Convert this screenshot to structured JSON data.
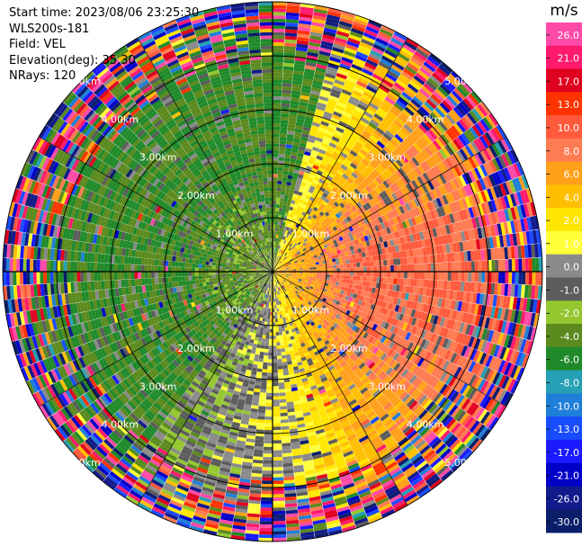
{
  "header": {
    "start_time": "Start time: 2023/08/06 23:25:30",
    "instrument": "WLS200s-181",
    "field": "Field: VEL",
    "elevation": "Elevation(deg): 35.30",
    "nrays": "NRays: 120"
  },
  "chart_data": {
    "type": "heatmap",
    "projection": "polar PPI",
    "field": "VEL",
    "units": "m/s",
    "n_rays": 120,
    "elevation_deg": 35.3,
    "range_rings_km": [
      1,
      2,
      3,
      4,
      5
    ],
    "range_ring_labels": [
      "1.00km",
      "2.00km",
      "3.00km",
      "4.00km",
      "5.00km"
    ],
    "max_range_km": 5.0,
    "colorbar": {
      "label": "m/s",
      "levels": [
        -30,
        -26,
        -21,
        -17,
        -13,
        -10,
        -8,
        -6,
        -4,
        -2,
        -1,
        0,
        1,
        2,
        4,
        6,
        8,
        10,
        13,
        17,
        21,
        26,
        30
      ],
      "tick_labels": [
        "26.0",
        "21.0",
        "17.0",
        "13.0",
        "10.0",
        "8.0",
        "6.0",
        "4.0",
        "2.0",
        "1.0",
        "0.0",
        "-1.0",
        "-2.0",
        "-4.0",
        "-6.0",
        "-8.0",
        "-10.0",
        "-13.0",
        "-17.0",
        "-21.0",
        "-26.0",
        "-30.0"
      ],
      "colors": [
        "#0b1e6a",
        "#121a8c",
        "#0000c8",
        "#1a1aff",
        "#1a4cff",
        "#1f7fd8",
        "#26a0b4",
        "#208a2a",
        "#5b8a1e",
        "#94c72f",
        "#5c5c5c",
        "#8a8a8a",
        "#ffff3a",
        "#ffe600",
        "#ffbf00",
        "#ff9f1a",
        "#ff7b52",
        "#ff5a3c",
        "#ff3300",
        "#e0001f",
        "#ff1a6e",
        "#ff4aa8"
      ]
    },
    "pattern": {
      "receding_sector_deg": [
        15,
        175
      ],
      "receding_peak_ms": 9,
      "approaching_peak_ms": -4,
      "noise_begins_km": 3.8
    }
  }
}
